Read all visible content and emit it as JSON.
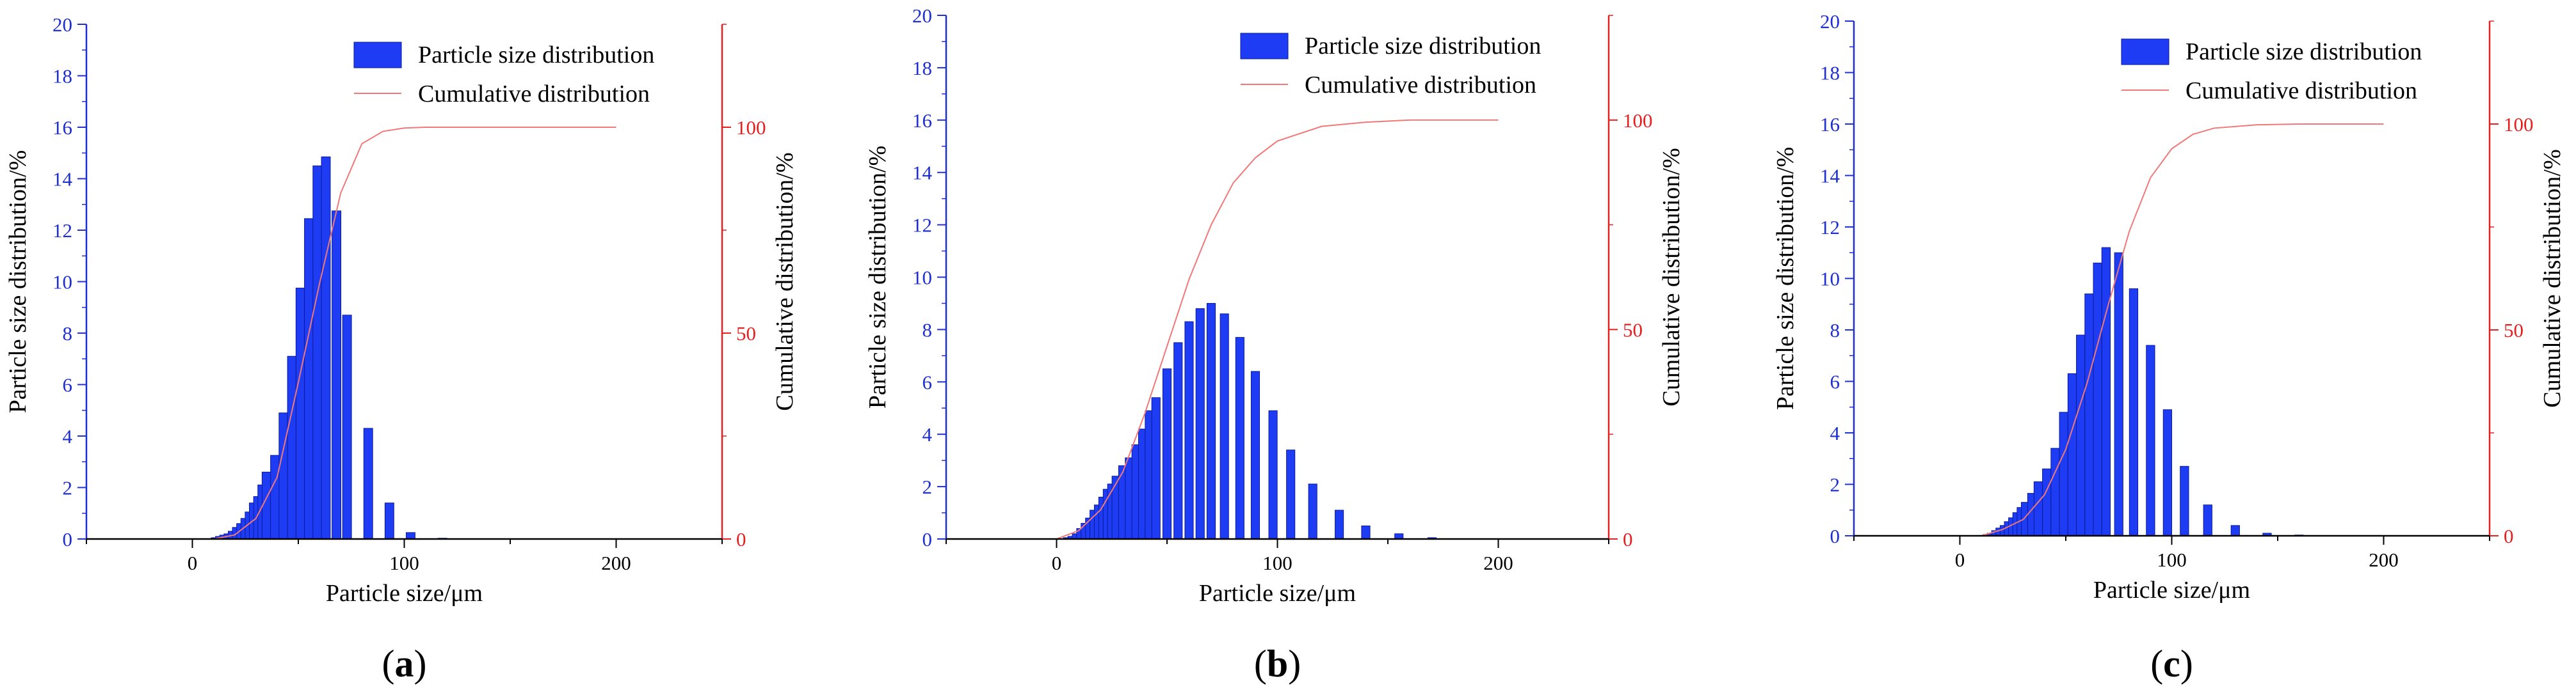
{
  "colors": {
    "bar": "#1f3cf5",
    "bar_edge": "#0a1a9a",
    "cumulative": "#f07878",
    "left_axis": "#1f2fd0",
    "right_axis": "#e42020",
    "axis": "#000000"
  },
  "chart_data": [
    {
      "type": "bar",
      "panel_label": "a",
      "xlabel": "Particle size/μm",
      "ylabel": "Particle size distribution/%",
      "y2label": "Cumulative distribution/%",
      "xlim": [
        -50,
        250
      ],
      "xticks": [
        0,
        100,
        200
      ],
      "ylim": [
        0,
        20
      ],
      "yticks": [
        0,
        2,
        4,
        6,
        8,
        10,
        12,
        14,
        16,
        18,
        20
      ],
      "y2lim": [
        0,
        125
      ],
      "y2ticks": [
        0,
        50,
        100
      ],
      "legend": [
        "Particle size distribution",
        "Cumulative distribution"
      ],
      "bar_width": 4.2,
      "x": [
        11,
        13,
        15,
        17,
        19,
        21,
        23,
        25,
        27,
        29,
        31,
        33,
        35,
        39,
        43,
        47,
        51,
        55,
        59,
        63,
        68,
        73,
        83,
        93,
        103,
        118
      ],
      "values": [
        0.05,
        0.1,
        0.15,
        0.2,
        0.3,
        0.45,
        0.6,
        0.8,
        1.05,
        1.4,
        1.65,
        2.1,
        2.6,
        3.25,
        4.9,
        7.1,
        9.75,
        12.45,
        14.5,
        14.85,
        12.75,
        8.7,
        4.3,
        1.4,
        0.25,
        0.03
      ],
      "cumulative_x": [
        10,
        20,
        30,
        40,
        50,
        60,
        70,
        80,
        90,
        100,
        110,
        120,
        200
      ],
      "cumulative": [
        0,
        1,
        5,
        15,
        38,
        62,
        84,
        96,
        99,
        99.8,
        100,
        100,
        100
      ]
    },
    {
      "type": "bar",
      "panel_label": "b",
      "xlabel": "Particle size/μm",
      "ylabel": "Particle size distribution/%",
      "y2label": "Cumulative distribution/%",
      "xlim": [
        -50,
        250
      ],
      "xticks": [
        0,
        100,
        200
      ],
      "ylim": [
        0,
        20
      ],
      "yticks": [
        0,
        2,
        4,
        6,
        8,
        10,
        12,
        14,
        16,
        18,
        20
      ],
      "y2lim": [
        0,
        125
      ],
      "y2ticks": [
        0,
        50,
        100
      ],
      "legend": [
        "Particle size distribution",
        "Cumulative distribution"
      ],
      "bar_width": 3.8,
      "x": [
        5,
        7,
        9,
        11,
        13,
        15,
        17,
        19,
        21,
        23,
        25,
        27,
        30,
        33,
        36,
        39,
        42,
        45,
        50,
        55,
        60,
        65,
        70,
        76,
        83,
        90,
        98,
        106,
        116,
        128,
        140,
        155,
        170
      ],
      "values": [
        0.05,
        0.1,
        0.2,
        0.4,
        0.6,
        0.8,
        1.1,
        1.3,
        1.6,
        1.9,
        2.1,
        2.4,
        2.8,
        3.1,
        3.6,
        4.2,
        4.9,
        5.4,
        6.5,
        7.5,
        8.3,
        8.8,
        9.0,
        8.6,
        7.7,
        6.4,
        4.9,
        3.4,
        2.1,
        1.1,
        0.5,
        0.2,
        0.05
      ],
      "cumulative_x": [
        0,
        10,
        20,
        30,
        40,
        50,
        60,
        70,
        80,
        90,
        100,
        120,
        140,
        160,
        180,
        200
      ],
      "cumulative": [
        0,
        2,
        7,
        16,
        30,
        46,
        62,
        75,
        85,
        91,
        95,
        98.5,
        99.5,
        100,
        100,
        100
      ]
    },
    {
      "type": "bar",
      "panel_label": "c",
      "xlabel": "Particle size/μm",
      "ylabel": "Particle size distribution/%",
      "y2label": "Cumulative distribution/%",
      "xlim": [
        -50,
        250
      ],
      "xticks": [
        0,
        100,
        200
      ],
      "ylim": [
        0,
        20
      ],
      "yticks": [
        0,
        2,
        4,
        6,
        8,
        10,
        12,
        14,
        16,
        18,
        20
      ],
      "y2lim": [
        0,
        125
      ],
      "y2ticks": [
        0,
        50,
        100
      ],
      "legend": [
        "Particle size distribution",
        "Cumulative distribution"
      ],
      "bar_width": 4.0,
      "x": [
        13,
        15,
        17,
        19,
        21,
        23,
        25,
        27,
        29,
        31,
        34,
        37,
        41,
        45,
        49,
        53,
        57,
        61,
        65,
        69,
        75,
        82,
        90,
        98,
        106,
        117,
        130,
        145,
        160
      ],
      "values": [
        0.05,
        0.1,
        0.2,
        0.3,
        0.4,
        0.55,
        0.7,
        0.9,
        1.1,
        1.3,
        1.65,
        2.1,
        2.6,
        3.4,
        4.8,
        6.3,
        7.8,
        9.4,
        10.6,
        11.2,
        11.0,
        9.6,
        7.4,
        4.9,
        2.7,
        1.2,
        0.4,
        0.1,
        0.03
      ],
      "cumulative_x": [
        10,
        20,
        30,
        40,
        50,
        60,
        70,
        80,
        90,
        100,
        110,
        120,
        140,
        160,
        180,
        200
      ],
      "cumulative": [
        0,
        1.5,
        4,
        10,
        21,
        37,
        56,
        74,
        87,
        94,
        97.5,
        99,
        99.8,
        100,
        100,
        100
      ]
    }
  ]
}
